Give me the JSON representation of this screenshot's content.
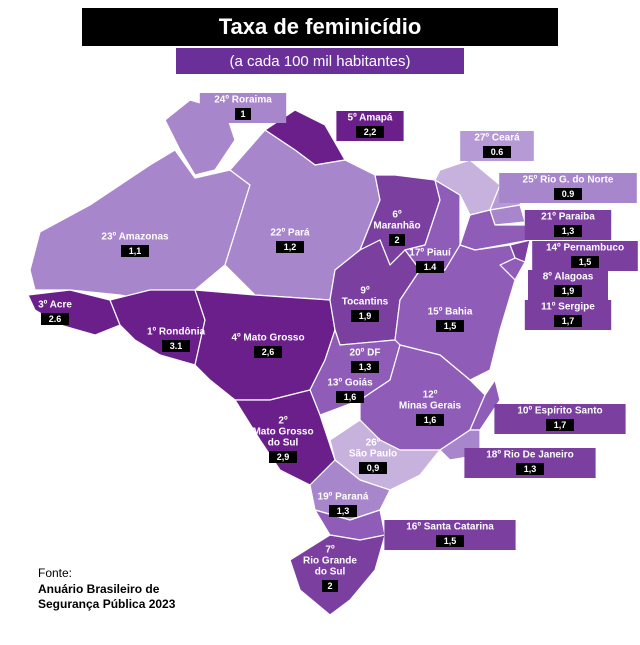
{
  "title": "Taxa de feminicídio",
  "subtitle": "(a cada 100 mil habitantes)",
  "states": [
    {
      "lines": [
        "24º Roraima"
      ],
      "value": "1"
    },
    {
      "lines": [
        "5º Amapá"
      ],
      "value": "2,2"
    },
    {
      "lines": [
        "23º Amazonas"
      ],
      "value": "1,1"
    },
    {
      "lines": [
        "22º Pará"
      ],
      "value": "1,2"
    },
    {
      "lines": [
        "27º Ceará"
      ],
      "value": "0.6"
    },
    {
      "lines": [
        "25º Rio G. do Norte"
      ],
      "value": "0.9"
    },
    {
      "lines": [
        "6º",
        "Maranhão"
      ],
      "value": "2"
    },
    {
      "lines": [
        "17º Piauí"
      ],
      "value": "1.4"
    },
    {
      "lines": [
        "21º Paraiba"
      ],
      "value": "1,3"
    },
    {
      "lines": [
        "14º Pernambuco"
      ],
      "value": "1,5"
    },
    {
      "lines": [
        "3º Acre"
      ],
      "value": "2.6"
    },
    {
      "lines": [
        "1º Rondônia"
      ],
      "value": "3.1"
    },
    {
      "lines": [
        "4º Mato Grosso"
      ],
      "value": "2,6"
    },
    {
      "lines": [
        "9º",
        "Tocantins"
      ],
      "value": "1,9"
    },
    {
      "lines": [
        "8º Alagoas"
      ],
      "value": "1,9"
    },
    {
      "lines": [
        "11º Sergipe"
      ],
      "value": "1,7"
    },
    {
      "lines": [
        "15º Bahia"
      ],
      "value": "1,5"
    },
    {
      "lines": [
        "20º DF"
      ],
      "value": "1,3"
    },
    {
      "lines": [
        "13º Goiás"
      ],
      "value": "1,6"
    },
    {
      "lines": [
        "12º",
        "Minas Gerais"
      ],
      "value": "1,6"
    },
    {
      "lines": [
        "10º Espírito Santo"
      ],
      "value": "1,7"
    },
    {
      "lines": [
        "2º",
        "Mato Grosso",
        "do Sul"
      ],
      "value": "2,9"
    },
    {
      "lines": [
        "18º Rio De Janeiro"
      ],
      "value": "1,3"
    },
    {
      "lines": [
        "26º",
        "São Paulo"
      ],
      "value": "0,9"
    },
    {
      "lines": [
        "19º Paraná"
      ],
      "value": "1,3"
    },
    {
      "lines": [
        "16º Santa Catarina"
      ],
      "value": "1,5"
    },
    {
      "lines": [
        "7º",
        "Rio Grande",
        "do Sul"
      ],
      "value": "2"
    }
  ],
  "source": [
    "Fonte:",
    "Anuário Brasileiro de",
    "Segurança Pública 2023"
  ]
}
